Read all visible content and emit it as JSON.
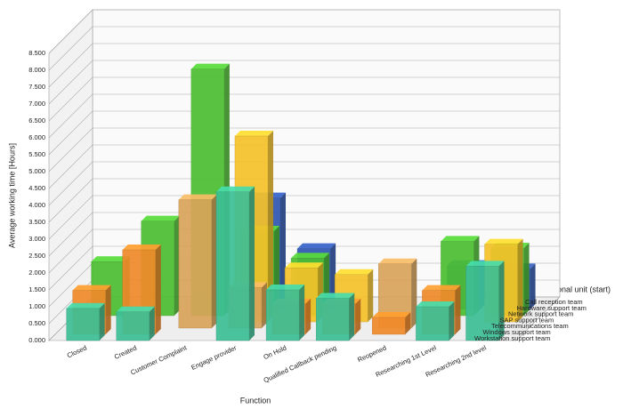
{
  "chart_data": {
    "type": "bar3d",
    "y_label": "Average working time [Hours]",
    "x_label": "Function",
    "legend_title": "Organizational unit (start)",
    "categories": [
      "Closed",
      "Created",
      "Customer Complaint",
      "Engage provider",
      "On Hold",
      "Qualified Callback pending",
      "Reopened",
      "Researching 1st Level",
      "Researching 2nd level"
    ],
    "series": [
      {
        "name": "Call reception team",
        "color": "#9a6cc8",
        "values": [
          null,
          null,
          null,
          null,
          null,
          null,
          null,
          null,
          null
        ]
      },
      {
        "name": "Hardware support team",
        "color": "#2f56b0",
        "values": [
          null,
          null,
          null,
          3.3,
          1.8,
          null,
          null,
          1.3,
          1.2
        ]
      },
      {
        "name": "Network support team",
        "color": "#4cbf32",
        "values": [
          1.6,
          2.8,
          7.3,
          2.5,
          1.7,
          null,
          null,
          2.2,
          2.0
        ]
      },
      {
        "name": "SAP support team",
        "color": "#f5c22a",
        "values": [
          null,
          null,
          null,
          5.5,
          1.6,
          1.4,
          null,
          null,
          2.3
        ]
      },
      {
        "name": "Telecommunications team",
        "color": "#d9a45a",
        "values": [
          null,
          null,
          3.8,
          1.2,
          null,
          null,
          1.9,
          null,
          null
        ]
      },
      {
        "name": "Windows support team",
        "color": "#f08a2a",
        "values": [
          1.3,
          2.5,
          null,
          null,
          0.9,
          0.9,
          0.5,
          1.3,
          null
        ]
      },
      {
        "name": "Workstation support team",
        "color": "#3dbf95",
        "values": [
          0.95,
          0.85,
          null,
          4.4,
          1.5,
          1.25,
          null,
          1.0,
          2.2
        ]
      }
    ],
    "ylim": [
      0,
      8.5
    ],
    "yticks": [
      {
        "value": 0,
        "label": "0.000"
      },
      {
        "value": 0.5,
        "label": "0.500"
      },
      {
        "value": 1,
        "label": "1.000"
      },
      {
        "value": 1.5,
        "label": "1.500"
      },
      {
        "value": 2,
        "label": "2.000"
      },
      {
        "value": 2.5,
        "label": "2.500"
      },
      {
        "value": 3,
        "label": "3.000"
      },
      {
        "value": 3.5,
        "label": "3.500"
      },
      {
        "value": 4,
        "label": "4.000"
      },
      {
        "value": 4.5,
        "label": "4.500"
      },
      {
        "value": 5,
        "label": "5.000"
      },
      {
        "value": 5.5,
        "label": "5.500"
      },
      {
        "value": 6,
        "label": "6.000"
      },
      {
        "value": 6.5,
        "label": "6.500"
      },
      {
        "value": 7,
        "label": "7.000"
      },
      {
        "value": 7.5,
        "label": "7.500"
      },
      {
        "value": 8,
        "label": "8.000"
      },
      {
        "value": 8.5,
        "label": "8.500"
      }
    ],
    "grid": true
  }
}
